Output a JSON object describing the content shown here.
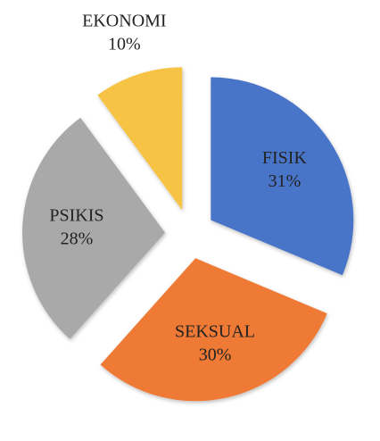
{
  "chart_data": {
    "type": "pie",
    "categories": [
      "FISIK",
      "SEKSUAL",
      "PSIKIS",
      "EKONOMI"
    ],
    "values": [
      31,
      30,
      28,
      10
    ],
    "value_labels": [
      "31%",
      "30%",
      "28%",
      "10%"
    ],
    "colors": [
      "#4a74c8",
      "#ee7a36",
      "#a9a9a9",
      "#f7c344"
    ]
  }
}
